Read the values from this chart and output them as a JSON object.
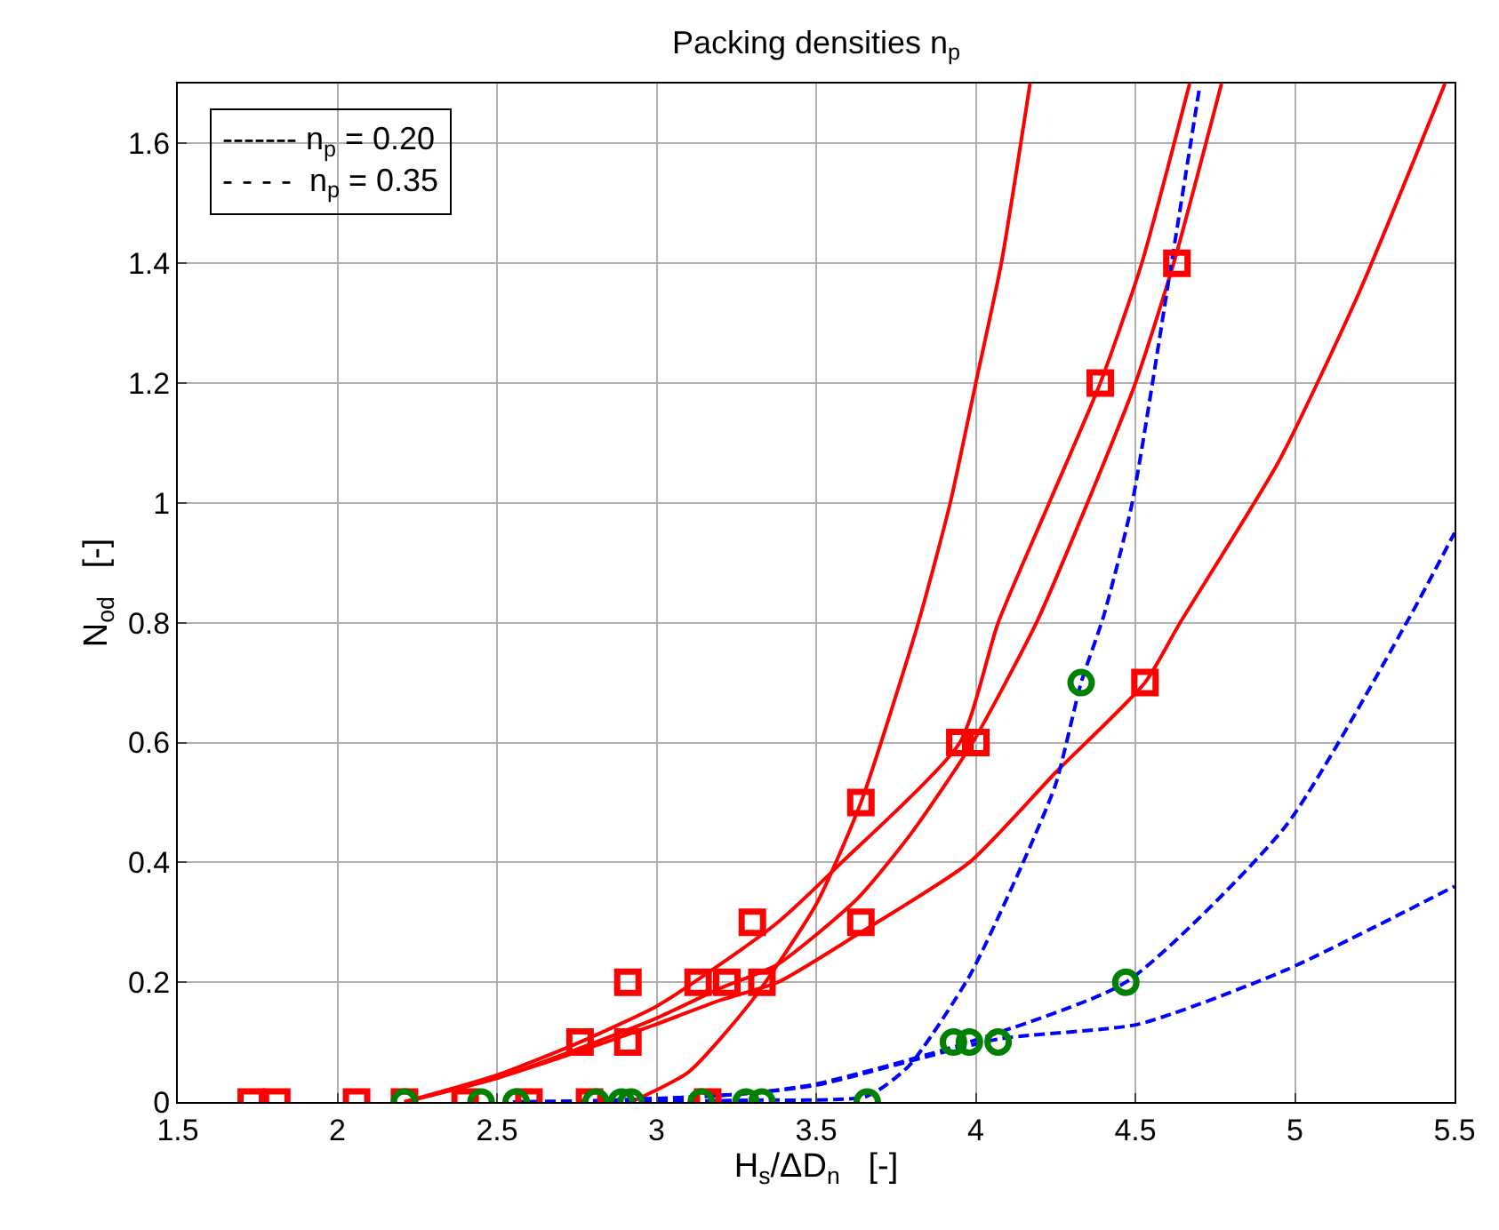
{
  "chart_data": {
    "type": "scatter",
    "title": "Packing densities n$_{p}$",
    "xlabel": "H$_{s}$/ΔD$_{n}$   [-]",
    "ylabel": "N$_{od}$   [-]",
    "annotations": [
      "------- n$_{p}$ = 0.20",
      "- - - -  n$_{p}$ = 0.35"
    ],
    "xlim": [
      1.5,
      5.5
    ],
    "ylim": [
      0,
      1.7
    ],
    "xticks": [
      1.5,
      2,
      2.5,
      3,
      3.5,
      4,
      4.5,
      5,
      5.5
    ],
    "yticks": [
      0,
      0.2,
      0.4,
      0.6,
      0.8,
      1,
      1.2,
      1.4,
      1.6
    ],
    "grid": true,
    "series": [
      {
        "type": "line",
        "color": "#ff0000",
        "marker": "none",
        "line_style": "solid",
        "x": [
          2.92,
          3.1,
          3.3,
          3.5,
          3.64,
          3.82,
          3.92,
          4.0,
          4.08,
          4.17
        ],
        "values": [
          0,
          0.05,
          0.17,
          0.33,
          0.5,
          0.8,
          1.0,
          1.2,
          1.4,
          1.7
        ]
      },
      {
        "type": "line",
        "color": "#ff0000",
        "marker": "none",
        "line_style": "solid",
        "x": [
          2.21,
          2.5,
          2.76,
          3.0,
          3.2,
          3.38,
          3.58,
          3.95,
          4.07,
          4.23,
          4.39,
          4.52,
          4.67
        ],
        "values": [
          0,
          0.045,
          0.1,
          0.16,
          0.23,
          0.3,
          0.4,
          0.6,
          0.8,
          1.0,
          1.2,
          1.4,
          1.7
        ]
      },
      {
        "type": "line",
        "color": "#ff0000",
        "marker": "none",
        "line_style": "solid",
        "x": [
          2.21,
          2.5,
          2.76,
          3.0,
          3.2,
          3.38,
          3.63,
          3.8,
          3.99,
          4.19,
          4.35,
          4.5,
          4.62,
          4.77
        ],
        "values": [
          0,
          0.04,
          0.09,
          0.14,
          0.19,
          0.23,
          0.34,
          0.45,
          0.6,
          0.8,
          1.0,
          1.2,
          1.4,
          1.7
        ]
      },
      {
        "type": "line",
        "color": "#ff0000",
        "marker": "none",
        "line_style": "solid",
        "x": [
          2.21,
          2.5,
          2.76,
          3.0,
          3.2,
          3.38,
          3.63,
          3.98,
          4.25,
          4.53,
          4.64,
          4.95,
          5.2,
          5.47
        ],
        "values": [
          0,
          0.04,
          0.085,
          0.13,
          0.17,
          0.2,
          0.28,
          0.4,
          0.55,
          0.7,
          0.8,
          1.07,
          1.35,
          1.7
        ]
      },
      {
        "type": "line",
        "color": "#0000ff",
        "marker": "none",
        "line_style": "dashed",
        "x": [
          2.55,
          3.3,
          3.66,
          3.79,
          3.98,
          4.14,
          4.25,
          4.33,
          4.4,
          4.49,
          4.61,
          4.7
        ],
        "values": [
          0,
          0.003,
          0.01,
          0.06,
          0.21,
          0.39,
          0.53,
          0.7,
          0.81,
          1.0,
          1.39,
          1.69
        ]
      },
      {
        "type": "line",
        "color": "#0000ff",
        "marker": "none",
        "line_style": "dashed",
        "x": [
          2.55,
          2.8,
          3.1,
          3.3,
          3.5,
          3.98,
          4.47,
          4.97,
          5.36,
          5.5
        ],
        "values": [
          0,
          0.002,
          0.008,
          0.015,
          0.03,
          0.1,
          0.2,
          0.46,
          0.81,
          0.95
        ]
      },
      {
        "type": "line",
        "color": "#0000ff",
        "marker": "none",
        "line_style": "dashed",
        "x": [
          2.55,
          2.8,
          3.1,
          3.3,
          3.5,
          4.07,
          4.51,
          4.97,
          5.5
        ],
        "values": [
          0,
          0.002,
          0.008,
          0.015,
          0.028,
          0.105,
          0.13,
          0.22,
          0.36
        ]
      },
      {
        "color": "#ff0000",
        "marker": "square",
        "x": [
          1.73,
          1.81,
          2.06,
          2.21,
          2.4,
          2.6,
          2.79,
          3.16,
          2.76,
          2.91,
          2.91,
          3.13,
          3.22,
          3.33,
          3.3,
          3.64,
          3.64,
          3.95,
          4.0,
          4.53,
          4.39,
          4.63
        ],
        "values": [
          0,
          0,
          0,
          0,
          0,
          0,
          0,
          0,
          0.1,
          0.1,
          0.2,
          0.2,
          0.2,
          0.2,
          0.3,
          0.5,
          0.3,
          0.6,
          0.6,
          0.7,
          1.2,
          1.4
        ]
      },
      {
        "color": "#008000",
        "marker": "circle",
        "x": [
          2.21,
          2.45,
          2.56,
          2.81,
          2.89,
          2.92,
          3.14,
          3.28,
          3.33,
          3.66,
          3.93,
          3.98,
          4.07,
          4.47,
          4.33
        ],
        "values": [
          0,
          0,
          0,
          0,
          0,
          0,
          0,
          0,
          0,
          0,
          0.1,
          0.1,
          0.1,
          0.2,
          0.7
        ]
      }
    ]
  }
}
